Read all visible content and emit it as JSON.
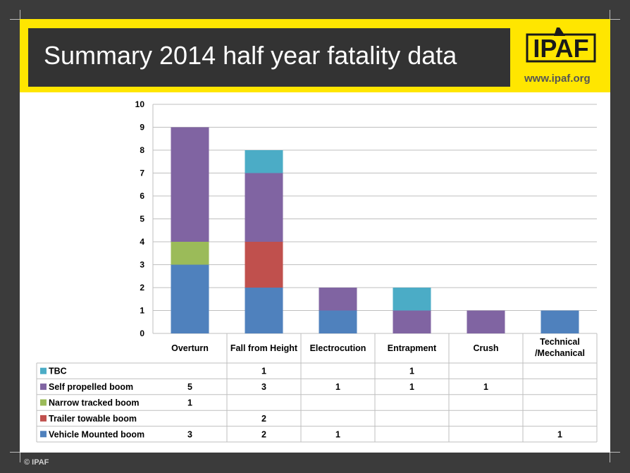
{
  "slide": {
    "title": "Summary 2014 half year fatality data",
    "logo_text": "IPAF",
    "website": "www.ipaf.org",
    "copyright": "© IPAF"
  },
  "colors": {
    "background": "#3b3b3b",
    "banner": "#ffe600",
    "title_box": "#333333",
    "gridline": "#bfbfbf"
  },
  "chart_data": {
    "type": "bar",
    "stacked": true,
    "title": "",
    "xlabel": "",
    "ylabel": "",
    "ylim": [
      0,
      10
    ],
    "yticks": [
      0,
      1,
      2,
      3,
      4,
      5,
      6,
      7,
      8,
      9,
      10
    ],
    "grid": true,
    "legend": "data-table",
    "categories": [
      "Overturn",
      "Fall from Height",
      "Electrocution",
      "Entrapment",
      "Crush",
      "Technical /Mechanical"
    ],
    "series": [
      {
        "name": "Vehicle Mounted boom",
        "color": "#4f81bd",
        "values": [
          3,
          2,
          1,
          null,
          null,
          1
        ]
      },
      {
        "name": "Trailer towable boom",
        "color": "#c0504d",
        "values": [
          null,
          2,
          null,
          null,
          null,
          null
        ]
      },
      {
        "name": "Narrow tracked boom",
        "color": "#9bbb59",
        "values": [
          1,
          null,
          null,
          null,
          null,
          null
        ]
      },
      {
        "name": "Self propelled boom",
        "color": "#8064a2",
        "values": [
          5,
          3,
          1,
          1,
          1,
          null
        ]
      },
      {
        "name": "TBC",
        "color": "#4bacc6",
        "values": [
          null,
          1,
          null,
          1,
          null,
          null
        ]
      }
    ],
    "table_row_order": [
      "TBC",
      "Self propelled boom",
      "Narrow tracked boom",
      "Trailer towable boom",
      "Vehicle Mounted boom"
    ]
  }
}
